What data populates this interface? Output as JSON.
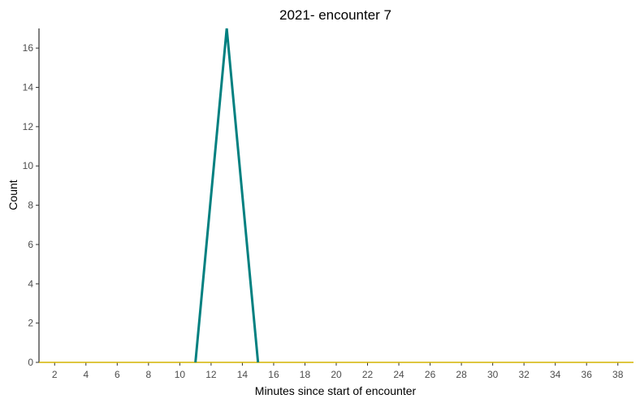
{
  "chart_data": {
    "type": "line",
    "title": "2021- encounter 7",
    "xlabel": "Minutes since start of encounter",
    "ylabel": "Count",
    "xlim": [
      1,
      39
    ],
    "ylim": [
      0,
      17
    ],
    "x_ticks": [
      2,
      4,
      6,
      8,
      10,
      12,
      14,
      16,
      18,
      20,
      22,
      24,
      26,
      28,
      30,
      32,
      34,
      36,
      38
    ],
    "y_ticks": [
      0,
      2,
      4,
      6,
      8,
      10,
      12,
      14,
      16
    ],
    "grid": false,
    "legend": "none",
    "series": [
      {
        "color": "#008080",
        "x": [
          11,
          13,
          15
        ],
        "y": [
          0,
          17,
          0
        ]
      },
      {
        "color": "#d4b400",
        "x": [
          1,
          39
        ],
        "y": [
          0,
          0
        ]
      }
    ]
  }
}
